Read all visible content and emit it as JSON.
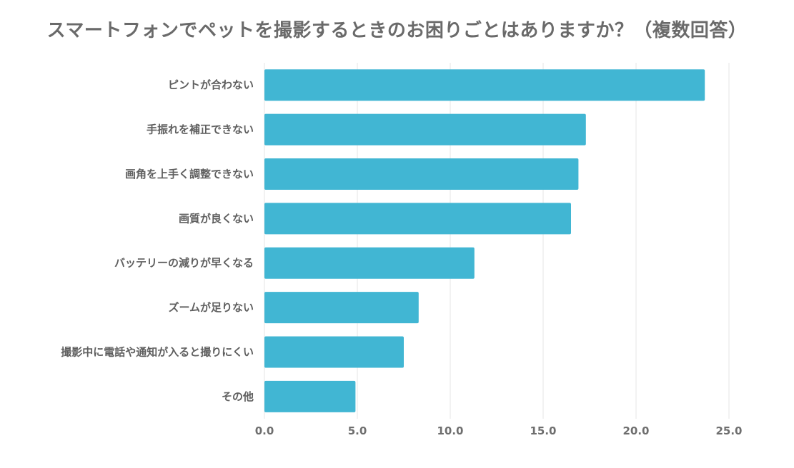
{
  "chart_data": {
    "type": "bar",
    "orientation": "horizontal",
    "title": "スマートフォンでペットを撮影するときのお困りごとはありますか？（複数回答）",
    "categories": [
      "ピントが合わない",
      "手振れを補正できない",
      "画角を上手く調整できない",
      "画質が良くない",
      "バッテリーの減りが早くなる",
      "ズームが足りない",
      "撮影中に電話や通知が入ると撮りにくい",
      "その他"
    ],
    "values": [
      23.7,
      17.3,
      16.9,
      16.5,
      11.3,
      8.3,
      7.5,
      4.9
    ],
    "xlim": [
      0,
      25
    ],
    "xticks": [
      "0.0",
      "5.0",
      "10.0",
      "15.0",
      "20.0",
      "25.0"
    ],
    "xtick_values": [
      0,
      5,
      10,
      15,
      20,
      25
    ],
    "grid": "vertical",
    "bar_color": "#41b6d3",
    "grid_color": "#e6e6e6",
    "legend": "none"
  }
}
